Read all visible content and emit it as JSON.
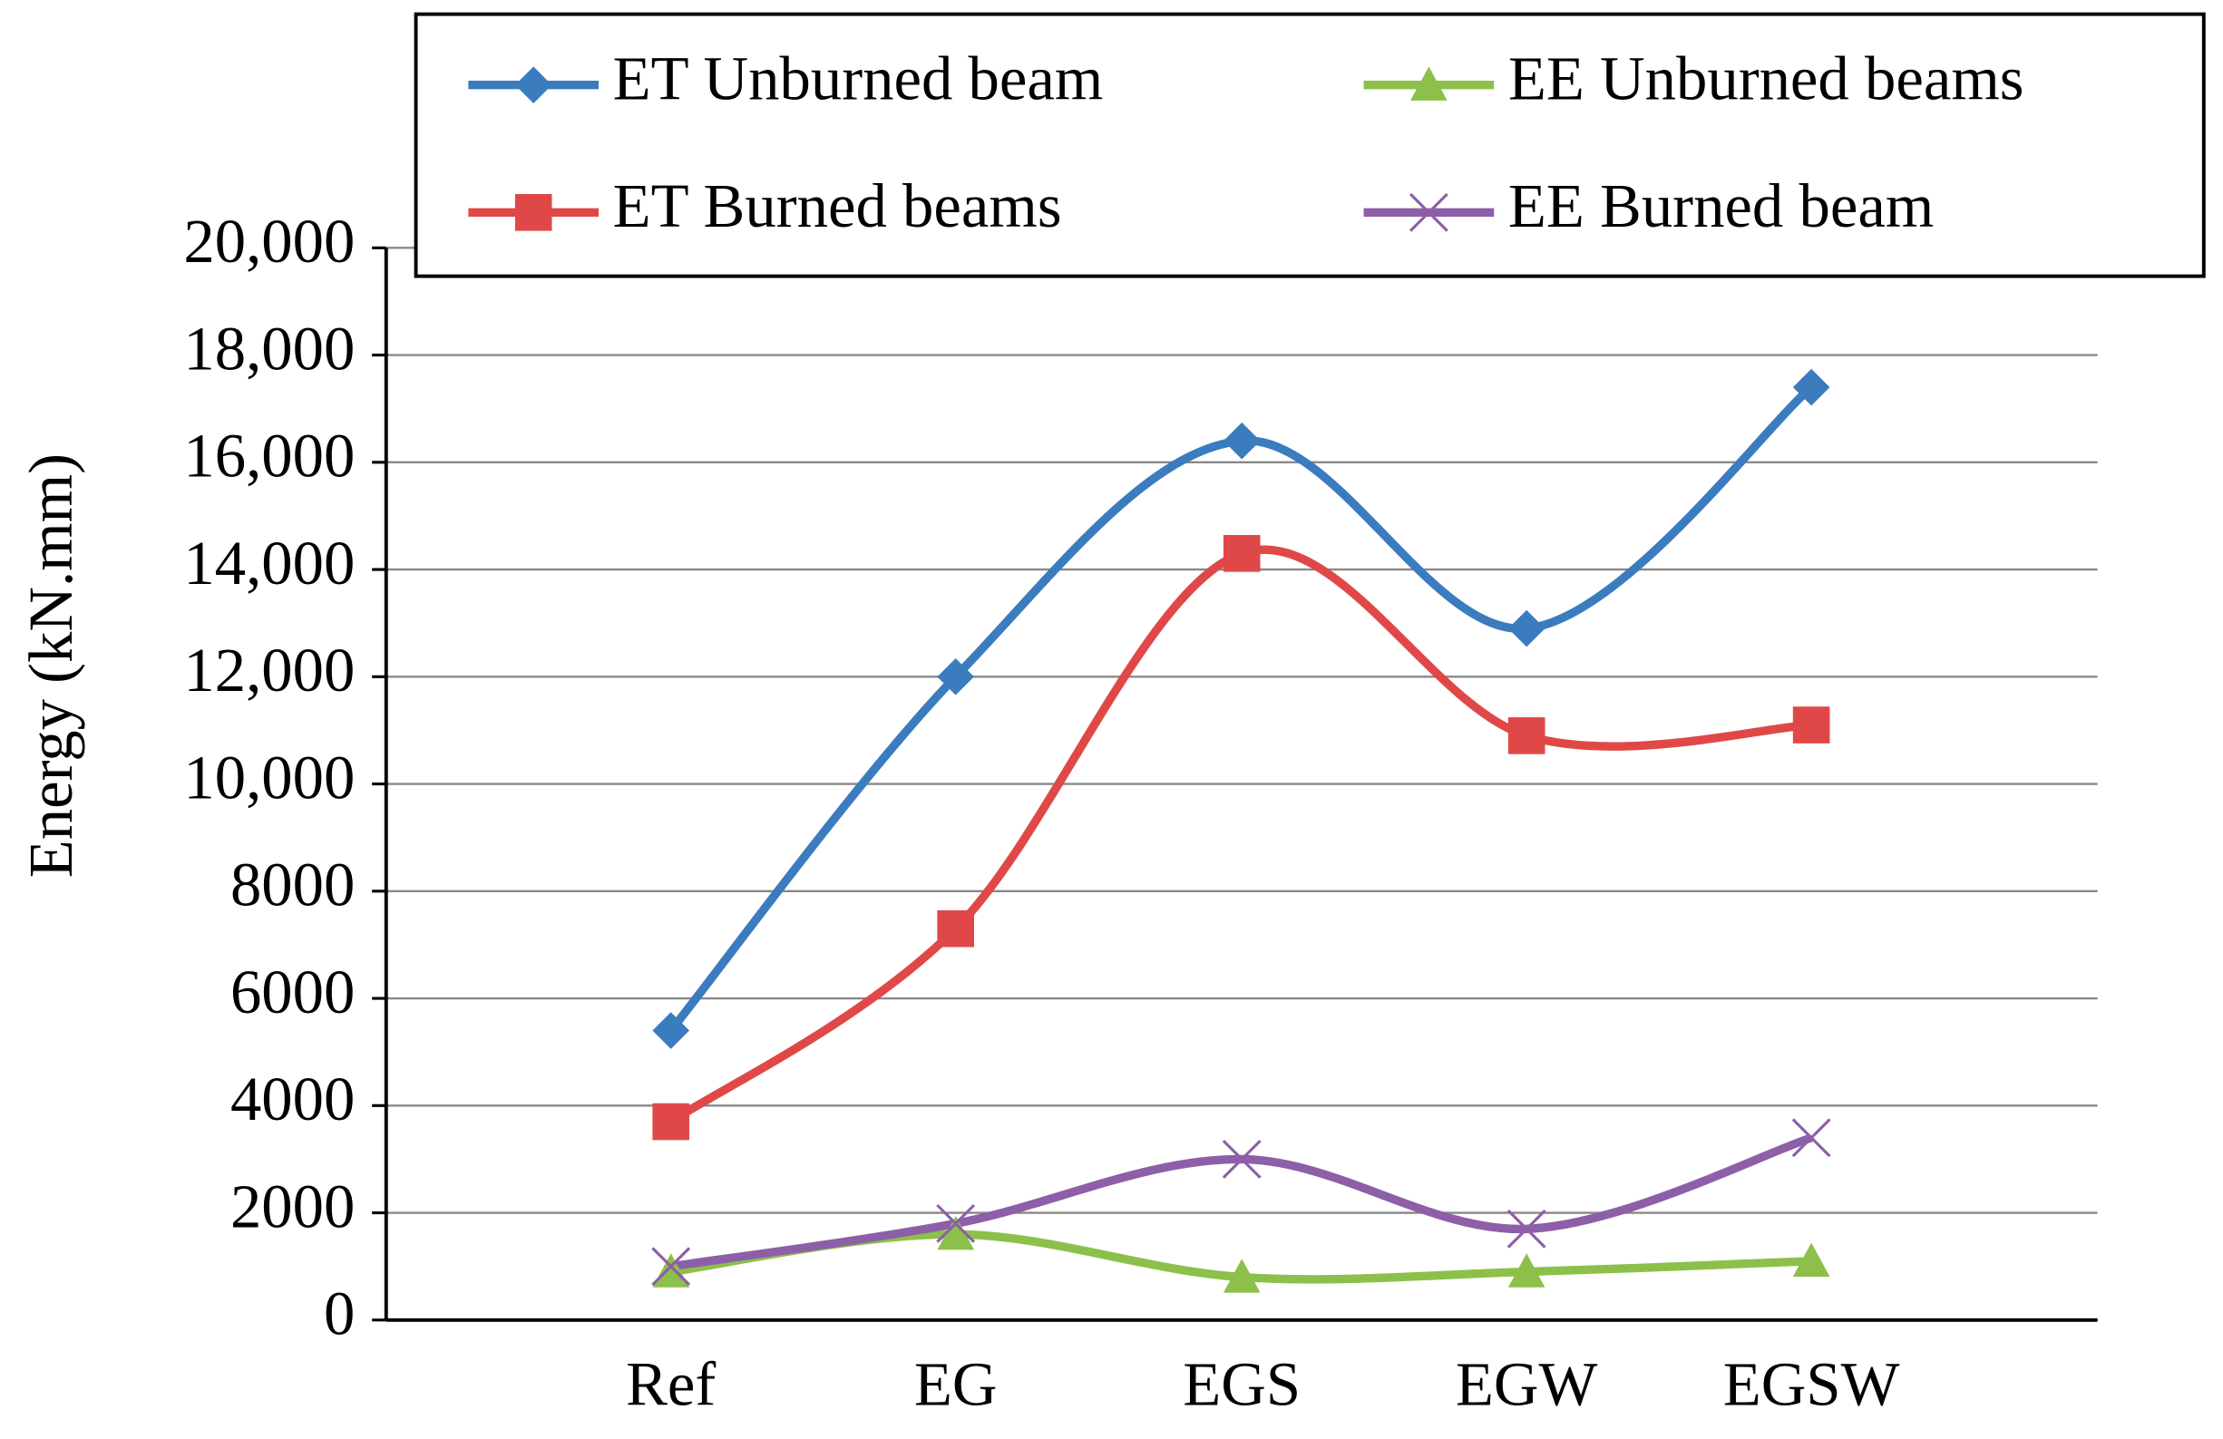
{
  "chart_data": {
    "type": "line",
    "smooth": true,
    "ylabel": "Energy (kN.mm)",
    "categories": [
      "Ref",
      "EG",
      "EGS",
      "EGW",
      "EGSW"
    ],
    "series": [
      {
        "name": "ET Unburned beam",
        "color": "#3b7cbf",
        "marker": "diamond",
        "values": [
          5400,
          12000,
          16400,
          12900,
          17400
        ]
      },
      {
        "name": "EE Unburned beams",
        "color": "#8cc04a",
        "marker": "triangle",
        "values": [
          900,
          1600,
          800,
          900,
          1100
        ]
      },
      {
        "name": "ET Burned beams",
        "color": "#e04848",
        "marker": "square",
        "values": [
          3700,
          7300,
          14300,
          10900,
          11100
        ]
      },
      {
        "name": "EE Burned beam",
        "color": "#8c5fa8",
        "marker": "cross",
        "values": [
          1000,
          1800,
          3000,
          1700,
          3400
        ]
      }
    ],
    "ylim": [
      0,
      20000
    ],
    "yticks": [
      0,
      2000,
      4000,
      6000,
      8000,
      {
        "value": 10000,
        "label": "10,000"
      },
      {
        "value": 12000,
        "label": "12,000"
      },
      {
        "value": 14000,
        "label": "14,000"
      },
      {
        "value": 16000,
        "label": "16,000"
      },
      {
        "value": 18000,
        "label": "18,000"
      },
      {
        "value": 20000,
        "label": "20,000"
      }
    ],
    "grid": true
  }
}
